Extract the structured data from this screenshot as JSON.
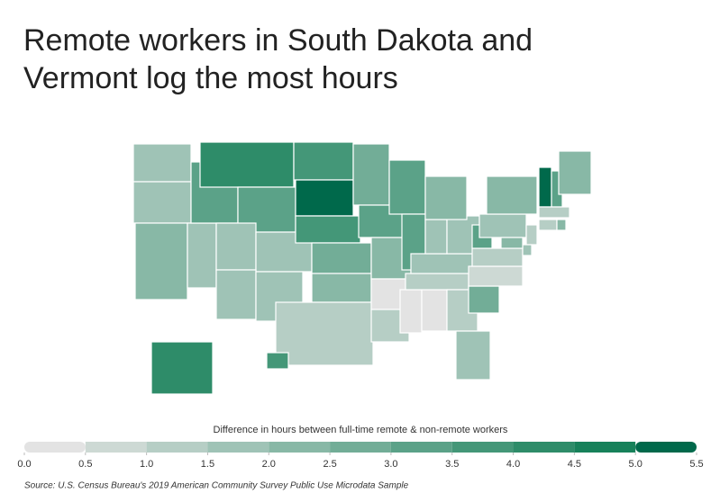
{
  "chart_data": {
    "type": "choropleth",
    "title": "Remote workers in South Dakota and Vermont log the most hours",
    "legend_title": "Difference in hours between full-time remote & non-remote workers",
    "source": "Source:  U.S. Census Bureau's 2019 American Community Survey Public Use Microdata Sample",
    "values": [
      1.7,
      1.8,
      2.3,
      1.6,
      3.1,
      4.0,
      3.2,
      1.7,
      1.8,
      1.8,
      1.8,
      3.7,
      5.2,
      3.8,
      2.6,
      2.0,
      1.3,
      2.8,
      3.2,
      2.4,
      0.3,
      1.4,
      3.0,
      3.0,
      0.3,
      0.3,
      1.2,
      1.8,
      1.6,
      1.8,
      2.2,
      1.4,
      1.6,
      2.6,
      0.8,
      1.0,
      3.4,
      1.6,
      2.2,
      1.4,
      1.6,
      2.2,
      5.2,
      3.1,
      2.3,
      1.0,
      1.2,
      2.0,
      4.2,
      3.8
    ],
    "colors": [
      "#e3e3e3",
      "#cdd9d4",
      "#b6cec5",
      "#9fc3b6",
      "#88b8a6",
      "#72ad97",
      "#5ba288",
      "#449778",
      "#2e8c69",
      "#17815a",
      "#00694b"
    ],
    "ticks": [
      {
        "value": 0,
        "label": "0.0"
      },
      0.5,
      {
        "value": 1,
        "label": "1.0"
      },
      1.5,
      {
        "value": 2,
        "label": "2.0"
      },
      2.5,
      {
        "value": 3,
        "label": "3.0"
      },
      3.5,
      {
        "value": 4,
        "label": "4.0"
      },
      4.5,
      {
        "value": 5,
        "label": "5.0"
      },
      5.5
    ]
  }
}
